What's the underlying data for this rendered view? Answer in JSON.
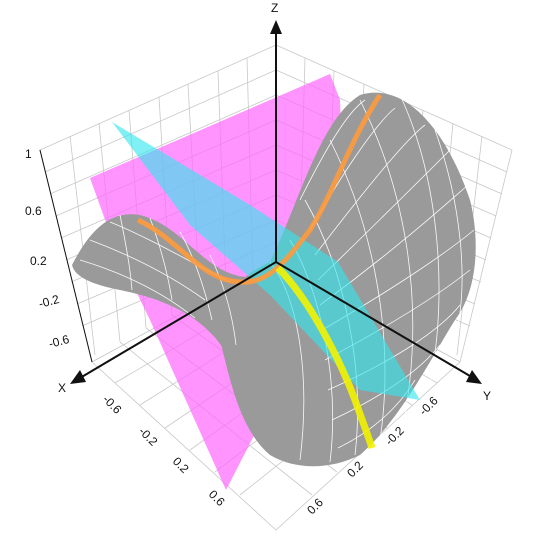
{
  "axes": {
    "x_label": "X",
    "y_label": "Y",
    "z_label": "Z",
    "z_ticks": [
      "1",
      "0.6",
      "0.2",
      "-0.2",
      "-0.6"
    ],
    "x_ticks": [
      "-0.6",
      "-0.2",
      "0.2",
      "0.6"
    ],
    "y_ticks": [
      "-0.6",
      "-0.2",
      "0.2",
      "0.6"
    ]
  },
  "colors": {
    "surface": "#9a9a9a",
    "mesh": "#ffffff",
    "plane_magenta": "#ff66ff",
    "plane_cyan": "#33e6ee",
    "curve_orange": "#ff9a3c",
    "curve_yellow": "#f2f200",
    "axis": "#111111",
    "grid": "#c8c8c8"
  }
}
